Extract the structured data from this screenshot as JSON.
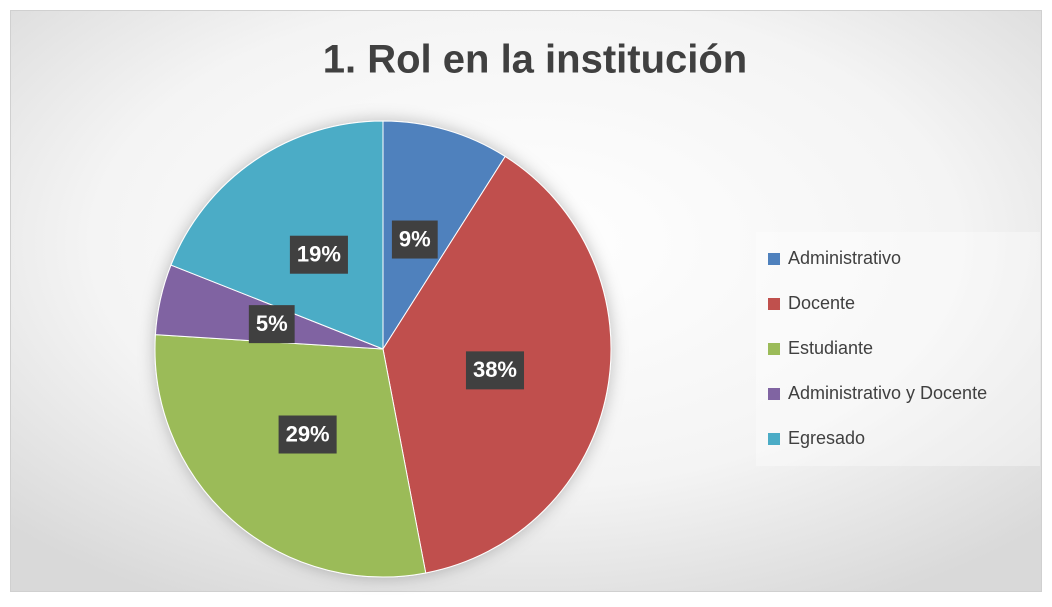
{
  "chart_data": {
    "type": "pie",
    "title": "1. Rol en la institución",
    "categories": [
      "Administrativo",
      "Docente",
      "Estudiante",
      "Administrativo y Docente",
      "Egresado"
    ],
    "values": [
      9,
      38,
      29,
      5,
      19
    ],
    "value_labels": [
      "9%",
      "38%",
      "29%",
      "5%",
      "19%"
    ],
    "colors": [
      "#4f81bd",
      "#c0504d",
      "#9bbb59",
      "#8064a2",
      "#4bacc6"
    ],
    "legend": "right"
  }
}
